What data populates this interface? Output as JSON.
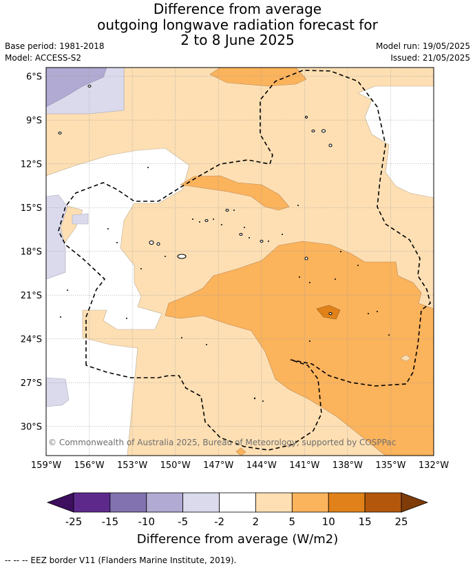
{
  "title": {
    "line1": "Difference from average",
    "line2": "outgoing longwave radiation forecast for",
    "line3": "2 to 8 June 2025"
  },
  "meta": {
    "base_period": "Base period: 1981-2018",
    "model": "Model: ACCESS-S2",
    "model_run": "Model run: 19/05/2025",
    "issued": "Issued: 21/05/2025"
  },
  "map": {
    "region": {
      "lon_range": [
        -159,
        -132
      ],
      "lat_range": [
        -32,
        -5.4
      ]
    },
    "lat_labels": [
      "6°S",
      "9°S",
      "12°S",
      "15°S",
      "18°S",
      "21°S",
      "24°S",
      "27°S",
      "30°S"
    ],
    "lon_labels": [
      "159°W",
      "156°W",
      "153°W",
      "150°W",
      "147°W",
      "144°W",
      "141°W",
      "138°W",
      "135°W",
      "132°W"
    ],
    "copyright": "© Commonwealth of Australia 2025, Bureau of Meteorology, supported by COSPPac"
  },
  "colorbar": {
    "bins": [
      {
        "range": "< -25",
        "color": "#3d0f5e"
      },
      {
        "range": "-25 to -15",
        "color": "#5d2a8c"
      },
      {
        "range": "-15 to -10",
        "color": "#8273b0"
      },
      {
        "range": "-10 to -5",
        "color": "#b1aad2"
      },
      {
        "range": "-5 to -2",
        "color": "#dadaec"
      },
      {
        "range": "-2 to 2",
        "color": "#ffffff"
      },
      {
        "range": "2 to 5",
        "color": "#fddfb3"
      },
      {
        "range": "5 to 10",
        "color": "#fbb35c"
      },
      {
        "range": "10 to 15",
        "color": "#e08119"
      },
      {
        "range": "15 to 25",
        "color": "#b3570c"
      },
      {
        "range": "> 25",
        "color": "#7f3b08"
      }
    ],
    "tick_labels": [
      "-25",
      "-15",
      "-10",
      "-5",
      "-2",
      "2",
      "5",
      "10",
      "15",
      "25"
    ],
    "title": "Difference from average (W/m2)"
  },
  "footer": "-- -- -- EEZ border V11 (Flanders Marine Institute, 2019)."
}
